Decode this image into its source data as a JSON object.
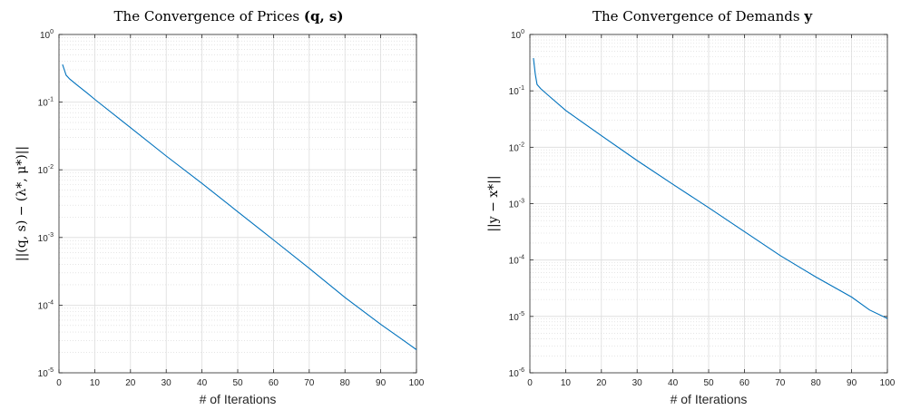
{
  "chart_data": [
    {
      "type": "line",
      "title": "The Convergence of Prices (q, s)",
      "title_parts": [
        {
          "text": "The Convergence of Prices ",
          "bold": false
        },
        {
          "text": "(q, s)",
          "bold": true
        }
      ],
      "xlabel": "# of Iterations",
      "ylabel": "||(q, s) − (λ*, μ*)||",
      "xlim": [
        0,
        100
      ],
      "ylim": [
        1e-05,
        1
      ],
      "yscale": "log",
      "grid": true,
      "x_ticks": [
        "0",
        "10",
        "20",
        "30",
        "40",
        "50",
        "60",
        "70",
        "80",
        "90",
        "100"
      ],
      "y_ticks": [
        {
          "base": "10",
          "exp": "0"
        },
        {
          "base": "10",
          "exp": "-1"
        },
        {
          "base": "10",
          "exp": "-2"
        },
        {
          "base": "10",
          "exp": "-3"
        },
        {
          "base": "10",
          "exp": "-4"
        },
        {
          "base": "10",
          "exp": "-5"
        }
      ],
      "series": [
        {
          "color": "#0072BD",
          "x": [
            1,
            1.5,
            2,
            3,
            5,
            8,
            10,
            20,
            30,
            40,
            50,
            60,
            70,
            80,
            90,
            95,
            100
          ],
          "values": [
            0.36,
            0.3,
            0.25,
            0.22,
            0.18,
            0.135,
            0.11,
            0.042,
            0.016,
            0.0063,
            0.0024,
            0.00092,
            0.00035,
            0.00013,
            5.2e-05,
            3.4e-05,
            2.2e-05
          ]
        }
      ]
    },
    {
      "type": "line",
      "title": "The Convergence of Demands y",
      "title_parts": [
        {
          "text": "The Convergence of Demands ",
          "bold": false
        },
        {
          "text": "y",
          "bold": true
        }
      ],
      "xlabel": "# of Iterations",
      "ylabel": "||y − x*||",
      "xlim": [
        0,
        100
      ],
      "ylim": [
        1e-06,
        1
      ],
      "yscale": "log",
      "grid": true,
      "x_ticks": [
        "0",
        "10",
        "20",
        "30",
        "40",
        "50",
        "60",
        "70",
        "80",
        "90",
        "100"
      ],
      "y_ticks": [
        {
          "base": "10",
          "exp": "0"
        },
        {
          "base": "10",
          "exp": "-1"
        },
        {
          "base": "10",
          "exp": "-2"
        },
        {
          "base": "10",
          "exp": "-3"
        },
        {
          "base": "10",
          "exp": "-4"
        },
        {
          "base": "10",
          "exp": "-5"
        },
        {
          "base": "10",
          "exp": "-6"
        }
      ],
      "series": [
        {
          "color": "#0072BD",
          "x": [
            1,
            1.5,
            2,
            3,
            5,
            10,
            20,
            30,
            40,
            50,
            60,
            70,
            80,
            90,
            95,
            100
          ],
          "values": [
            0.38,
            0.2,
            0.13,
            0.11,
            0.085,
            0.045,
            0.016,
            0.0058,
            0.0022,
            0.00085,
            0.00032,
            0.00012,
            5e-05,
            2.2e-05,
            1.3e-05,
            9.2e-06
          ]
        }
      ]
    }
  ]
}
